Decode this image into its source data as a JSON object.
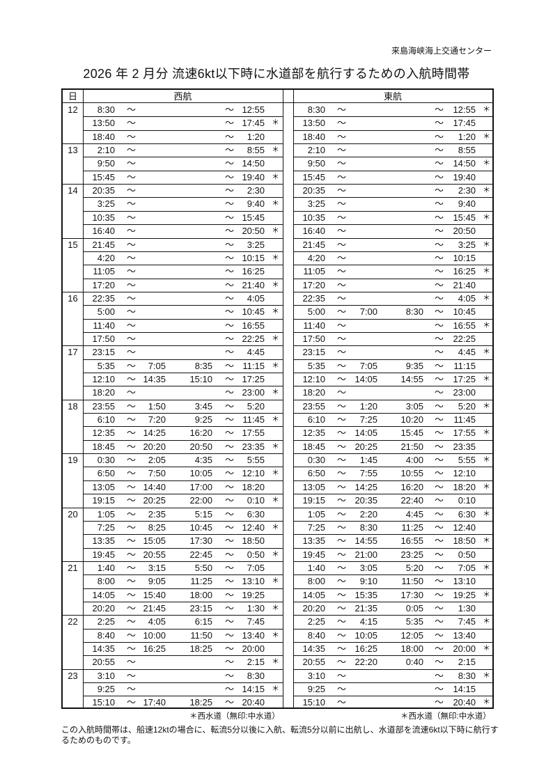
{
  "header": {
    "organization": "来島海峡海上交通センター",
    "title": "2026 年  2 月分 流速6kt以下時に水道部を航行するための入航時間帯"
  },
  "columns": {
    "day": "日",
    "west": "西航",
    "east": "東航"
  },
  "tilde": "～",
  "star": "＊",
  "rows": [
    {
      "day": "12",
      "west": [
        "8:30",
        "",
        "",
        "12:55",
        ""
      ],
      "east": [
        "8:30",
        "",
        "",
        "12:55",
        "＊"
      ]
    },
    {
      "day": "",
      "west": [
        "13:50",
        "",
        "",
        "17:45",
        "＊"
      ],
      "east": [
        "13:50",
        "",
        "",
        "17:45",
        ""
      ]
    },
    {
      "day": "",
      "west": [
        "18:40",
        "",
        "",
        "1:20",
        ""
      ],
      "east": [
        "18:40",
        "",
        "",
        "1:20",
        "＊"
      ]
    },
    {
      "day": "13",
      "west": [
        "2:10",
        "",
        "",
        "8:55",
        "＊"
      ],
      "east": [
        "2:10",
        "",
        "",
        "8:55",
        ""
      ]
    },
    {
      "day": "",
      "west": [
        "9:50",
        "",
        "",
        "14:50",
        ""
      ],
      "east": [
        "9:50",
        "",
        "",
        "14:50",
        "＊"
      ]
    },
    {
      "day": "",
      "west": [
        "15:45",
        "",
        "",
        "19:40",
        "＊"
      ],
      "east": [
        "15:45",
        "",
        "",
        "19:40",
        ""
      ]
    },
    {
      "day": "14",
      "west": [
        "20:35",
        "",
        "",
        "2:30",
        ""
      ],
      "east": [
        "20:35",
        "",
        "",
        "2:30",
        "＊"
      ]
    },
    {
      "day": "",
      "west": [
        "3:25",
        "",
        "",
        "9:40",
        "＊"
      ],
      "east": [
        "3:25",
        "",
        "",
        "9:40",
        ""
      ]
    },
    {
      "day": "",
      "west": [
        "10:35",
        "",
        "",
        "15:45",
        ""
      ],
      "east": [
        "10:35",
        "",
        "",
        "15:45",
        "＊"
      ]
    },
    {
      "day": "",
      "west": [
        "16:40",
        "",
        "",
        "20:50",
        "＊"
      ],
      "east": [
        "16:40",
        "",
        "",
        "20:50",
        ""
      ]
    },
    {
      "day": "15",
      "west": [
        "21:45",
        "",
        "",
        "3:25",
        ""
      ],
      "east": [
        "21:45",
        "",
        "",
        "3:25",
        "＊"
      ]
    },
    {
      "day": "",
      "west": [
        "4:20",
        "",
        "",
        "10:15",
        "＊"
      ],
      "east": [
        "4:20",
        "",
        "",
        "10:15",
        ""
      ]
    },
    {
      "day": "",
      "west": [
        "11:05",
        "",
        "",
        "16:25",
        ""
      ],
      "east": [
        "11:05",
        "",
        "",
        "16:25",
        "＊"
      ]
    },
    {
      "day": "",
      "west": [
        "17:20",
        "",
        "",
        "21:40",
        "＊"
      ],
      "east": [
        "17:20",
        "",
        "",
        "21:40",
        ""
      ]
    },
    {
      "day": "16",
      "west": [
        "22:35",
        "",
        "",
        "4:05",
        ""
      ],
      "east": [
        "22:35",
        "",
        "",
        "4:05",
        "＊"
      ]
    },
    {
      "day": "",
      "west": [
        "5:00",
        "",
        "",
        "10:45",
        "＊"
      ],
      "east": [
        "5:00",
        "7:00",
        "8:30",
        "10:45",
        ""
      ]
    },
    {
      "day": "",
      "west": [
        "11:40",
        "",
        "",
        "16:55",
        ""
      ],
      "east": [
        "11:40",
        "",
        "",
        "16:55",
        "＊"
      ]
    },
    {
      "day": "",
      "west": [
        "17:50",
        "",
        "",
        "22:25",
        "＊"
      ],
      "east": [
        "17:50",
        "",
        "",
        "22:25",
        ""
      ]
    },
    {
      "day": "17",
      "west": [
        "23:15",
        "",
        "",
        "4:45",
        ""
      ],
      "east": [
        "23:15",
        "",
        "",
        "4:45",
        "＊"
      ]
    },
    {
      "day": "",
      "west": [
        "5:35",
        "7:05",
        "8:35",
        "11:15",
        "＊"
      ],
      "east": [
        "5:35",
        "7:05",
        "9:35",
        "11:15",
        ""
      ]
    },
    {
      "day": "",
      "west": [
        "12:10",
        "14:35",
        "15:10",
        "17:25",
        ""
      ],
      "east": [
        "12:10",
        "14:05",
        "14:55",
        "17:25",
        "＊"
      ]
    },
    {
      "day": "",
      "west": [
        "18:20",
        "",
        "",
        "23:00",
        "＊"
      ],
      "east": [
        "18:20",
        "",
        "",
        "23:00",
        ""
      ]
    },
    {
      "day": "18",
      "west": [
        "23:55",
        "1:50",
        "3:45",
        "5:20",
        ""
      ],
      "east": [
        "23:55",
        "1:20",
        "3:05",
        "5:20",
        "＊"
      ]
    },
    {
      "day": "",
      "west": [
        "6:10",
        "7:20",
        "9:25",
        "11:45",
        "＊"
      ],
      "east": [
        "6:10",
        "7:25",
        "10:20",
        "11:45",
        ""
      ]
    },
    {
      "day": "",
      "west": [
        "12:35",
        "14:25",
        "16:20",
        "17:55",
        ""
      ],
      "east": [
        "12:35",
        "14:05",
        "15:45",
        "17:55",
        "＊"
      ]
    },
    {
      "day": "",
      "west": [
        "18:45",
        "20:20",
        "20:50",
        "23:35",
        "＊"
      ],
      "east": [
        "18:45",
        "20:25",
        "21:50",
        "23:35",
        ""
      ]
    },
    {
      "day": "19",
      "west": [
        "0:30",
        "2:05",
        "4:35",
        "5:55",
        ""
      ],
      "east": [
        "0:30",
        "1:45",
        "4:00",
        "5:55",
        "＊"
      ]
    },
    {
      "day": "",
      "west": [
        "6:50",
        "7:50",
        "10:05",
        "12:10",
        "＊"
      ],
      "east": [
        "6:50",
        "7:55",
        "10:55",
        "12:10",
        ""
      ]
    },
    {
      "day": "",
      "west": [
        "13:05",
        "14:40",
        "17:00",
        "18:20",
        ""
      ],
      "east": [
        "13:05",
        "14:25",
        "16:20",
        "18:20",
        "＊"
      ]
    },
    {
      "day": "",
      "west": [
        "19:15",
        "20:25",
        "22:00",
        "0:10",
        "＊"
      ],
      "east": [
        "19:15",
        "20:35",
        "22:40",
        "0:10",
        ""
      ]
    },
    {
      "day": "20",
      "west": [
        "1:05",
        "2:35",
        "5:15",
        "6:30",
        ""
      ],
      "east": [
        "1:05",
        "2:20",
        "4:45",
        "6:30",
        "＊"
      ]
    },
    {
      "day": "",
      "west": [
        "7:25",
        "8:25",
        "10:45",
        "12:40",
        "＊"
      ],
      "east": [
        "7:25",
        "8:30",
        "11:25",
        "12:40",
        ""
      ]
    },
    {
      "day": "",
      "west": [
        "13:35",
        "15:05",
        "17:30",
        "18:50",
        ""
      ],
      "east": [
        "13:35",
        "14:55",
        "16:55",
        "18:50",
        "＊"
      ]
    },
    {
      "day": "",
      "west": [
        "19:45",
        "20:55",
        "22:45",
        "0:50",
        "＊"
      ],
      "east": [
        "19:45",
        "21:00",
        "23:25",
        "0:50",
        ""
      ]
    },
    {
      "day": "21",
      "west": [
        "1:40",
        "3:15",
        "5:50",
        "7:05",
        ""
      ],
      "east": [
        "1:40",
        "3:05",
        "5:20",
        "7:05",
        "＊"
      ]
    },
    {
      "day": "",
      "west": [
        "8:00",
        "9:05",
        "11:25",
        "13:10",
        "＊"
      ],
      "east": [
        "8:00",
        "9:10",
        "11:50",
        "13:10",
        ""
      ]
    },
    {
      "day": "",
      "west": [
        "14:05",
        "15:40",
        "18:00",
        "19:25",
        ""
      ],
      "east": [
        "14:05",
        "15:35",
        "17:30",
        "19:25",
        "＊"
      ]
    },
    {
      "day": "",
      "west": [
        "20:20",
        "21:45",
        "23:15",
        "1:30",
        "＊"
      ],
      "east": [
        "20:20",
        "21:35",
        "0:05",
        "1:30",
        ""
      ]
    },
    {
      "day": "22",
      "west": [
        "2:25",
        "4:05",
        "6:15",
        "7:45",
        ""
      ],
      "east": [
        "2:25",
        "4:15",
        "5:35",
        "7:45",
        "＊"
      ]
    },
    {
      "day": "",
      "west": [
        "8:40",
        "10:00",
        "11:50",
        "13:40",
        "＊"
      ],
      "east": [
        "8:40",
        "10:05",
        "12:05",
        "13:40",
        ""
      ]
    },
    {
      "day": "",
      "west": [
        "14:35",
        "16:25",
        "18:25",
        "20:00",
        ""
      ],
      "east": [
        "14:35",
        "16:25",
        "18:00",
        "20:00",
        "＊"
      ]
    },
    {
      "day": "",
      "west": [
        "20:55",
        "",
        "",
        "2:15",
        "＊"
      ],
      "east": [
        "20:55",
        "22:20",
        "0:40",
        "2:15",
        ""
      ]
    },
    {
      "day": "23",
      "west": [
        "3:10",
        "",
        "",
        "8:30",
        ""
      ],
      "east": [
        "3:10",
        "",
        "",
        "8:30",
        "＊"
      ]
    },
    {
      "day": "",
      "west": [
        "9:25",
        "",
        "",
        "14:15",
        "＊"
      ],
      "east": [
        "9:25",
        "",
        "",
        "14:15",
        ""
      ]
    },
    {
      "day": "",
      "west": [
        "15:10",
        "17:40",
        "18:25",
        "20:40",
        ""
      ],
      "east": [
        "15:10",
        "",
        "",
        "20:40",
        "＊"
      ]
    }
  ],
  "legend": {
    "west": "＊西水道（無印:中水道）",
    "east": "＊西水道（無印:中水道）"
  },
  "footnote": "この入航時間帯は、船速12ktの場合に、転流5分以後に入航、転流5分以前に出航し、水道部を流速6kt以下時に航行するためのものです。"
}
